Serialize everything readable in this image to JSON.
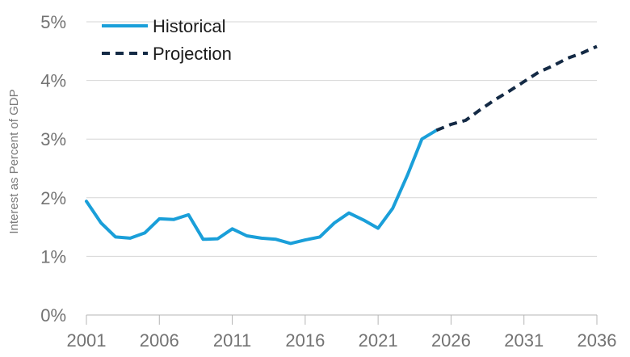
{
  "chart_data": {
    "type": "line",
    "ylabel": "Interest as Percent of GDP",
    "xlim": [
      2001,
      2036
    ],
    "ylim": [
      0,
      5
    ],
    "x_ticks": [
      2001,
      2006,
      2011,
      2016,
      2021,
      2026,
      2031,
      2036
    ],
    "x_tick_labels": [
      "2001",
      "2006",
      "2011",
      "2016",
      "2021",
      "2026",
      "2031",
      "2036"
    ],
    "y_ticks": [
      0,
      1,
      2,
      3,
      4,
      5
    ],
    "y_tick_labels": [
      "0%",
      "1%",
      "2%",
      "3%",
      "4%",
      "5%"
    ],
    "grid": "horizontal",
    "legend_position": "top-left",
    "series": [
      {
        "name": "Historical",
        "color": "#1a9fd9",
        "style": "solid",
        "x": [
          2001,
          2002,
          2003,
          2004,
          2005,
          2006,
          2007,
          2008,
          2009,
          2010,
          2011,
          2012,
          2013,
          2014,
          2015,
          2016,
          2017,
          2018,
          2019,
          2020,
          2021,
          2022,
          2023,
          2024,
          2025
        ],
        "y": [
          1.94,
          1.57,
          1.33,
          1.31,
          1.4,
          1.64,
          1.63,
          1.71,
          1.29,
          1.3,
          1.47,
          1.35,
          1.31,
          1.29,
          1.22,
          1.28,
          1.33,
          1.57,
          1.74,
          1.62,
          1.48,
          1.82,
          2.38,
          3.0,
          3.15
        ]
      },
      {
        "name": "Projection",
        "color": "#142a45",
        "style": "dashed",
        "x": [
          2025,
          2026,
          2027,
          2028,
          2029,
          2030,
          2031,
          2032,
          2033,
          2034,
          2035,
          2036
        ],
        "y": [
          3.15,
          3.25,
          3.32,
          3.5,
          3.67,
          3.82,
          3.98,
          4.14,
          4.25,
          4.38,
          4.47,
          4.58
        ]
      }
    ]
  }
}
